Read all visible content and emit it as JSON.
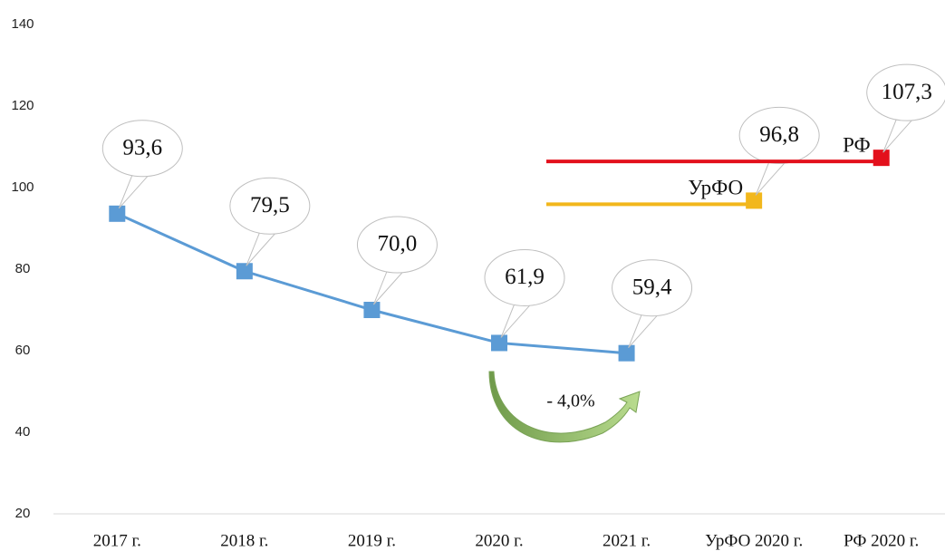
{
  "chart_data": {
    "type": "line",
    "categories": [
      "2017 г.",
      "2018 г.",
      "2019 г.",
      "2020 г.",
      "2021 г.",
      "УрФО 2020 г.",
      "РФ 2020 г."
    ],
    "series": [
      {
        "color": "#5b9bd5",
        "values": [
          93.6,
          79.5,
          70.0,
          61.9,
          59.4,
          null,
          null
        ],
        "value_labels": [
          "93,6",
          "79,5",
          "70,0",
          "61,9",
          "59,4",
          null,
          null
        ]
      },
      {
        "name": "УрФО",
        "color": "#f2b71c",
        "values": [
          null,
          null,
          null,
          null,
          null,
          96.8,
          null
        ],
        "value_labels": [
          null,
          null,
          null,
          null,
          null,
          "96,8",
          null
        ]
      },
      {
        "name": "РФ",
        "color": "#e3101c",
        "values": [
          null,
          null,
          null,
          null,
          null,
          null,
          107.3
        ],
        "value_labels": [
          null,
          null,
          null,
          null,
          null,
          null,
          "107,3"
        ]
      }
    ],
    "annotation": "- 4,0%",
    "ylim": [
      20,
      140
    ],
    "yticks": [
      20,
      40,
      60,
      80,
      100,
      120,
      140
    ]
  }
}
